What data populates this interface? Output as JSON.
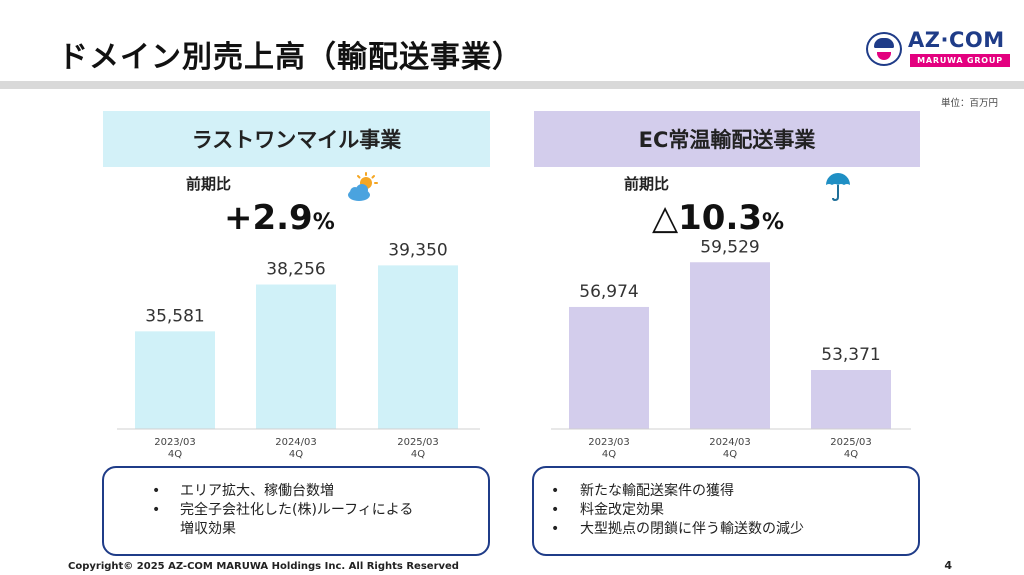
{
  "page": {
    "title": "ドメイン別売上高（輸配送事業）",
    "unit": "単位：百万円",
    "copyright": "Copyright© 2025 AZ-COM MARUWA Holdings Inc. All Rights Reserved",
    "page_number": "4"
  },
  "logo": {
    "text": "AZ·COM",
    "sub": "MARUWA GROUP"
  },
  "panels": [
    {
      "heading": "ラストワンマイル事業",
      "yoy_label": "前期比",
      "yoy_value": "+2.9",
      "yoy_unit": "%",
      "weather_icon": "sun-behind-cloud-icon",
      "bullets": [
        "エリア拡大、稼働台数増",
        "完全子会社化した(株)ルーフィによる\n増収効果"
      ]
    },
    {
      "heading": "EC常温輸配送事業",
      "yoy_label": "前期比",
      "yoy_value": "△10.3",
      "yoy_unit": "%",
      "weather_icon": "umbrella-icon",
      "bullets": [
        "新たな輸配送案件の獲得",
        "料金改定効果",
        "大型拠点の閉鎖に伴う輸送数の減少"
      ]
    }
  ],
  "colors": {
    "bar_left": "#d0f1f8",
    "bar_right": "#d3cdec",
    "accent_navy": "#1f3c88",
    "accent_pink": "#e3007f"
  },
  "chart_data": [
    {
      "type": "bar",
      "categories": [
        "2023/03\n4Q",
        "2024/03\n4Q",
        "2025/03\n4Q"
      ],
      "values": [
        35581,
        38256,
        39350
      ],
      "value_labels": [
        "35,581",
        "38,256",
        "39,350"
      ],
      "title": "ラストワンマイル事業",
      "ylim": [
        30000,
        40000
      ],
      "grid": false,
      "color": "#d0f1f8"
    },
    {
      "type": "bar",
      "categories": [
        "2023/03\n4Q",
        "2024/03\n4Q",
        "2025/03\n4Q"
      ],
      "values": [
        56974,
        59529,
        53371
      ],
      "value_labels": [
        "56,974",
        "59,529",
        "53,371"
      ],
      "title": "EC常温輸配送事業",
      "ylim": [
        50000,
        60000
      ],
      "grid": false,
      "color": "#d3cdec"
    }
  ]
}
